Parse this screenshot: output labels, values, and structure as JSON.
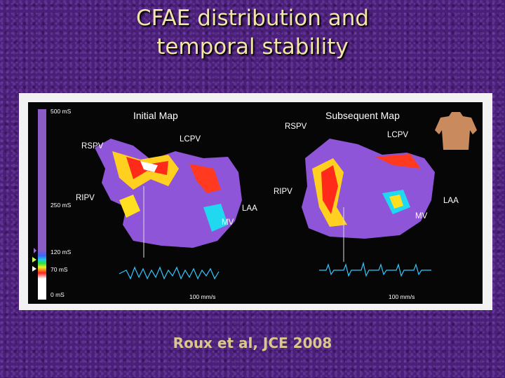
{
  "slide": {
    "title_line1": "CFAE distribution and",
    "title_line2": "temporal stability",
    "citation": "Roux et al, JCE 2008"
  },
  "figure": {
    "left_map": {
      "title": "Initial Map",
      "labels": {
        "rspv": "RSPV",
        "lcpv": "LCPV",
        "ripv": "RIPV",
        "laa": "LAA",
        "mv": "MV"
      },
      "speed": "100 mm/s"
    },
    "right_map": {
      "title": "Subsequent Map",
      "labels": {
        "rspv": "RSPV",
        "lcpv": "LCPV",
        "ripv": "RIPV",
        "laa": "LAA",
        "mv": "MV"
      },
      "speed": "100 mm/s"
    },
    "scale": {
      "top": "500 mS",
      "mid": "250 mS",
      "l120": "120 mS",
      "l70": "70 mS",
      "zero": "0 mS"
    }
  }
}
